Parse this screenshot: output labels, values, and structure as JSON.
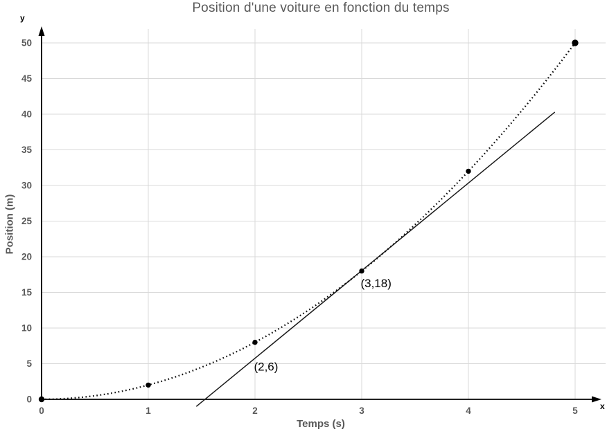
{
  "chart_data": {
    "type": "line",
    "title": "Position d'une voiture en fonction du temps",
    "xlabel": "Temps (s)",
    "ylabel": "Position (m)",
    "x_axis_arrow_label": "x",
    "y_axis_arrow_label": "y",
    "xlim": [
      0,
      5
    ],
    "ylim": [
      0,
      50
    ],
    "x_ticks": [
      0,
      1,
      2,
      3,
      4,
      5
    ],
    "y_ticks": [
      0,
      5,
      10,
      15,
      20,
      25,
      30,
      35,
      40,
      45,
      50
    ],
    "grid": true,
    "legend": false,
    "series": [
      {
        "name": "position-curve",
        "style": "dotted",
        "markers": true,
        "points": [
          [
            0,
            0
          ],
          [
            1,
            2
          ],
          [
            2,
            8
          ],
          [
            3,
            18
          ],
          [
            4,
            32
          ],
          [
            5,
            50
          ]
        ],
        "curve_samples": [
          [
            0,
            0
          ],
          [
            0.125,
            0.031
          ],
          [
            0.25,
            0.125
          ],
          [
            0.375,
            0.281
          ],
          [
            0.5,
            0.5
          ],
          [
            0.625,
            0.781
          ],
          [
            0.75,
            1.125
          ],
          [
            0.875,
            1.531
          ],
          [
            1,
            2
          ],
          [
            1.125,
            2.531
          ],
          [
            1.25,
            3.125
          ],
          [
            1.375,
            3.781
          ],
          [
            1.5,
            4.5
          ],
          [
            1.625,
            5.281
          ],
          [
            1.75,
            6.125
          ],
          [
            1.875,
            7.031
          ],
          [
            2,
            8
          ],
          [
            2.125,
            9.031
          ],
          [
            2.25,
            10.125
          ],
          [
            2.375,
            11.281
          ],
          [
            2.5,
            12.5
          ],
          [
            2.625,
            13.781
          ],
          [
            2.75,
            15.125
          ],
          [
            2.875,
            16.531
          ],
          [
            3,
            18
          ],
          [
            3.125,
            19.531
          ],
          [
            3.25,
            21.125
          ],
          [
            3.375,
            22.781
          ],
          [
            3.5,
            24.5
          ],
          [
            3.625,
            26.281
          ],
          [
            3.75,
            28.125
          ],
          [
            3.875,
            30.031
          ],
          [
            4,
            32
          ],
          [
            4.125,
            34.031
          ],
          [
            4.25,
            36.125
          ],
          [
            4.375,
            38.281
          ],
          [
            4.5,
            40.5
          ],
          [
            4.625,
            42.781
          ],
          [
            4.75,
            45.125
          ],
          [
            4.875,
            47.531
          ],
          [
            5,
            50
          ]
        ]
      },
      {
        "name": "tangent-line",
        "style": "solid",
        "markers": false,
        "points": [
          [
            1.45,
            -1.0
          ],
          [
            4.81,
            40.3
          ]
        ]
      }
    ],
    "annotations": [
      {
        "text": "(2,6)",
        "x": 1.99,
        "y": 4.6
      },
      {
        "text": "(3,18)",
        "x": 2.99,
        "y": 16.3
      }
    ],
    "colors": {
      "grid": "#d9d9d9",
      "axis": "#000000",
      "curve": "#111111",
      "tangent": "#1a1a1a",
      "marker": "#000000",
      "text_gray": "#595959",
      "annotation": "#000000"
    }
  }
}
